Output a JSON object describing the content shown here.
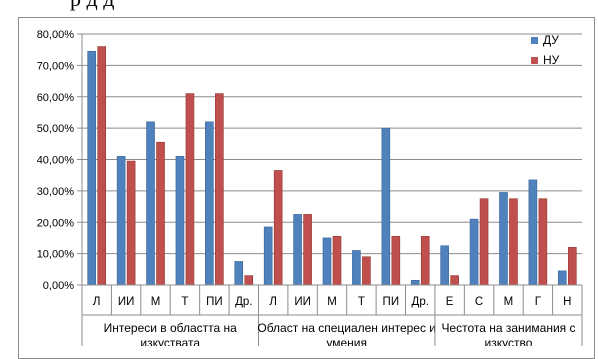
{
  "page": {
    "cut_text": "р                                     д             д"
  },
  "chart_data": {
    "type": "bar",
    "categories": [
      "Л",
      "ИИ",
      "М",
      "Т",
      "ПИ",
      "Др.",
      "Л",
      "ИИ",
      "М",
      "Т",
      "ПИ",
      "Др.",
      "Е",
      "С",
      "М",
      "Г",
      "Н"
    ],
    "groups": [
      {
        "label": "Интереси в областта на изкуствата",
        "start": 0,
        "count": 6
      },
      {
        "label": "Област на специален интерес и умения",
        "start": 6,
        "count": 6
      },
      {
        "label": "Честота на занимания с изкуство",
        "start": 12,
        "count": 5
      }
    ],
    "series": [
      {
        "name": "ДУ",
        "color": "#4f81bd",
        "values": [
          74.5,
          41,
          52,
          41,
          52,
          7.5,
          18.5,
          22.5,
          15,
          11,
          50,
          1.5,
          12.5,
          21,
          29.5,
          33.5,
          4.5
        ]
      },
      {
        "name": "НУ",
        "color": "#c0504d",
        "values": [
          76,
          39.5,
          45.5,
          61,
          61,
          3,
          36.5,
          22.5,
          15.5,
          9,
          15.5,
          15.5,
          3,
          27.5,
          27.5,
          27.5,
          12
        ]
      }
    ],
    "yticks": [
      "0,00%",
      "10,00%",
      "20,00%",
      "30,00%",
      "40,00%",
      "50,00%",
      "60,00%",
      "70,00%",
      "80,00%"
    ],
    "ylim": [
      0,
      80
    ],
    "grid": true,
    "legend": "top-right"
  }
}
